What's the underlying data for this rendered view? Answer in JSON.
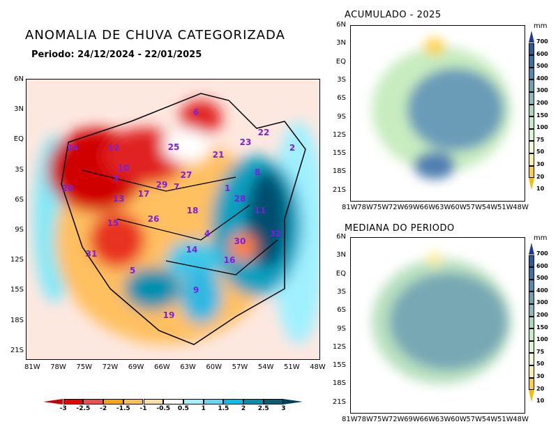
{
  "main": {
    "title": "ANOMALIA DE CHUVA CATEGORIZADA",
    "period": "Periodo: 24/12/2024 - 22/01/2025",
    "lat_ticks": [
      "6N",
      "3N",
      "EQ",
      "3S",
      "6S",
      "9S",
      "12S",
      "15S",
      "18S",
      "21S"
    ],
    "lon_ticks": [
      "81W",
      "78W",
      "75W",
      "72W",
      "69W",
      "66W",
      "63W",
      "60W",
      "57W",
      "54W",
      "51W",
      "48W"
    ],
    "basin_labels": [
      "6",
      "22",
      "23",
      "2",
      "24",
      "12",
      "25",
      "21",
      "10",
      "27",
      "8",
      "3",
      "20",
      "29",
      "7",
      "17",
      "13",
      "1",
      "28",
      "18",
      "11",
      "26",
      "15",
      "4",
      "32",
      "30",
      "14",
      "31",
      "16",
      "5",
      "9",
      "19"
    ],
    "colorbar": {
      "ticks": [
        "-3",
        "-2.5",
        "-2",
        "-1.5",
        "-1",
        "-0.5",
        "0.5",
        "1",
        "1.5",
        "2",
        "2.5",
        "3"
      ],
      "colors": [
        "#c80000",
        "#f00000",
        "#f05050",
        "#ffa500",
        "#ffc050",
        "#ffe0a0",
        "#ffffff",
        "#a0f0ff",
        "#60d8f8",
        "#00c0f0",
        "#0090b0",
        "#006078",
        "#00405a"
      ]
    }
  },
  "acumulado": {
    "title": "ACUMULADO - 2025"
  },
  "mediana": {
    "title": "MEDIANA DO PERIODO"
  },
  "small_lat_ticks": [
    "6N",
    "3N",
    "EQ",
    "3S",
    "6S",
    "9S",
    "12S",
    "15S",
    "18S",
    "21S"
  ],
  "small_lon_ticks": [
    "81W",
    "78W",
    "75W",
    "72W",
    "69W",
    "66W",
    "63W",
    "60W",
    "57W",
    "54W",
    "51W",
    "48W"
  ],
  "mm_colorbar": {
    "unit": "mm",
    "ticks": [
      "700",
      "600",
      "500",
      "400",
      "300",
      "200",
      "150",
      "100",
      "75",
      "50",
      "30",
      "20",
      "10"
    ],
    "colors": [
      "#1c3c8c",
      "#2a5aa0",
      "#3c70a8",
      "#5088b0",
      "#6aa0b0",
      "#88b8b8",
      "#a8d8c0",
      "#c0ecc8",
      "#d8f4c8",
      "#eef8c8",
      "#fff0a0",
      "#ffd040",
      "#ffb800"
    ]
  }
}
